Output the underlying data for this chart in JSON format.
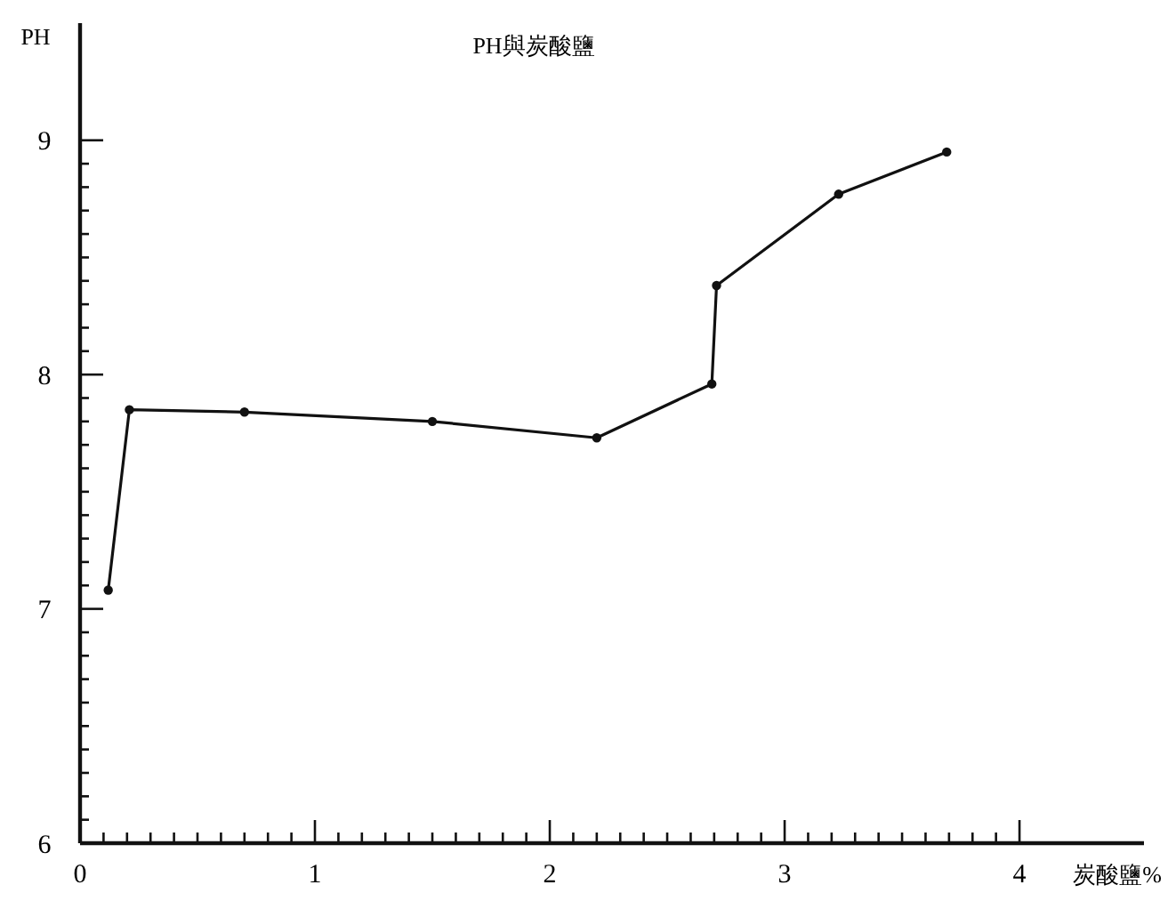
{
  "chart_data": {
    "type": "line",
    "title": "PH與炭酸鹽",
    "xlabel": "炭酸鹽%",
    "ylabel": "PH",
    "x": [
      0.12,
      0.21,
      0.7,
      1.5,
      2.2,
      2.69,
      2.71,
      3.23,
      3.69
    ],
    "series": [
      {
        "color": "#111111",
        "values": [
          7.08,
          7.85,
          7.84,
          7.8,
          7.73,
          7.96,
          8.38,
          8.77,
          8.95
        ]
      }
    ],
    "marker": "circle",
    "line_style": "solid",
    "xlim": [
      0,
      4.53
    ],
    "ylim": [
      6,
      9.5
    ],
    "xticks": [
      0,
      {
        "value": 0.1,
        "label": null
      },
      {
        "value": 0.2,
        "label": null
      },
      {
        "value": 0.3,
        "label": null
      },
      {
        "value": 0.4,
        "label": null
      },
      {
        "value": 0.5,
        "label": null
      },
      {
        "value": 0.6,
        "label": null
      },
      {
        "value": 0.7,
        "label": null
      },
      {
        "value": 0.8,
        "label": null
      },
      {
        "value": 0.9,
        "label": null
      },
      1,
      {
        "value": 1.1,
        "label": null
      },
      {
        "value": 1.2,
        "label": null
      },
      {
        "value": 1.3,
        "label": null
      },
      {
        "value": 1.4,
        "label": null
      },
      {
        "value": 1.5,
        "label": null
      },
      {
        "value": 1.6,
        "label": null
      },
      {
        "value": 1.7,
        "label": null
      },
      {
        "value": 1.8,
        "label": null
      },
      {
        "value": 1.9,
        "label": null
      },
      2,
      {
        "value": 2.1,
        "label": null
      },
      {
        "value": 2.2,
        "label": null
      },
      {
        "value": 2.3,
        "label": null
      },
      {
        "value": 2.4,
        "label": null
      },
      {
        "value": 2.5,
        "label": null
      },
      {
        "value": 2.6,
        "label": null
      },
      {
        "value": 2.7,
        "label": null
      },
      {
        "value": 2.8,
        "label": null
      },
      {
        "value": 2.9,
        "label": null
      },
      3,
      {
        "value": 3.1,
        "label": null
      },
      {
        "value": 3.2,
        "label": null
      },
      {
        "value": 3.3,
        "label": null
      },
      {
        "value": 3.4,
        "label": null
      },
      {
        "value": 3.5,
        "label": null
      },
      {
        "value": 3.6,
        "label": null
      },
      {
        "value": 3.7,
        "label": null
      },
      {
        "value": 3.8,
        "label": null
      },
      {
        "value": 3.9,
        "label": null
      },
      4
    ],
    "yticks": [
      6,
      {
        "value": 6.1,
        "label": null
      },
      {
        "value": 6.2,
        "label": null
      },
      {
        "value": 6.3,
        "label": null
      },
      {
        "value": 6.4,
        "label": null
      },
      {
        "value": 6.5,
        "label": null
      },
      {
        "value": 6.6,
        "label": null
      },
      {
        "value": 6.7,
        "label": null
      },
      {
        "value": 6.8,
        "label": null
      },
      {
        "value": 6.9,
        "label": null
      },
      7,
      {
        "value": 7.1,
        "label": null
      },
      {
        "value": 7.2,
        "label": null
      },
      {
        "value": 7.3,
        "label": null
      },
      {
        "value": 7.4,
        "label": null
      },
      {
        "value": 7.5,
        "label": null
      },
      {
        "value": 7.6,
        "label": null
      },
      {
        "value": 7.7,
        "label": null
      },
      {
        "value": 7.8,
        "label": null
      },
      {
        "value": 7.9,
        "label": null
      },
      8,
      {
        "value": 8.1,
        "label": null
      },
      {
        "value": 8.2,
        "label": null
      },
      {
        "value": 8.3,
        "label": null
      },
      {
        "value": 8.4,
        "label": null
      },
      {
        "value": 8.5,
        "label": null
      },
      {
        "value": 8.6,
        "label": null
      },
      {
        "value": 8.7,
        "label": null
      },
      {
        "value": 8.8,
        "label": null
      },
      {
        "value": 8.9,
        "label": null
      },
      9
    ]
  }
}
